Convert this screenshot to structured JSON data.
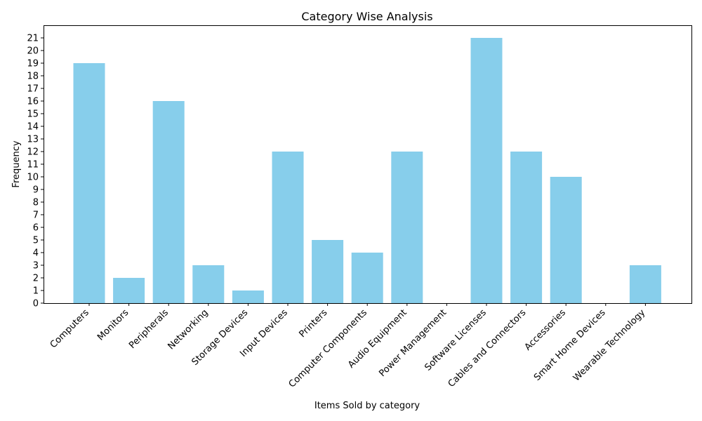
{
  "chart_data": {
    "type": "bar",
    "title": "Category Wise Analysis",
    "xlabel": "Items Sold by category",
    "ylabel": "Frequency",
    "categories": [
      "Computers",
      "Monitors",
      "Peripherals",
      "Networking",
      "Storage Devices",
      "Input Devices",
      "Printers",
      "Computer Components",
      "Audio Equipment",
      "Power Management",
      "Software Licenses",
      "Cables and Connectors",
      "Accessories",
      "Smart Home Devices",
      "Wearable Technology"
    ],
    "values": [
      19,
      2,
      16,
      3,
      1,
      12,
      5,
      4,
      12,
      0,
      21,
      12,
      10,
      0,
      3
    ],
    "ylim": [
      0,
      22
    ],
    "yticks": [
      0,
      1,
      2,
      3,
      4,
      5,
      6,
      7,
      8,
      9,
      10,
      11,
      12,
      13,
      14,
      15,
      16,
      17,
      18,
      19,
      20,
      21
    ],
    "bar_color": "#87ceeb",
    "grid": false,
    "legend": "none"
  }
}
